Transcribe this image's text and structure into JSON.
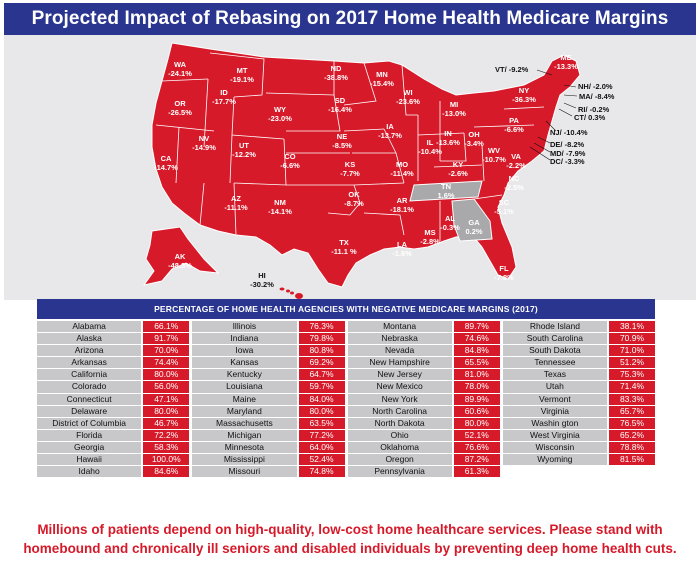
{
  "title": "Projected Impact of Rebasing on 2017 Home Health Medicare Margins",
  "colors": {
    "navy": "#2a3590",
    "red": "#d61a2a",
    "gray": "#a9a9ac",
    "cell": "#c8c8cb"
  },
  "map": {
    "states": [
      {
        "code": "WA",
        "value": "-24.1%"
      },
      {
        "code": "OR",
        "value": "-26.5%"
      },
      {
        "code": "CA",
        "value": "-14.7%"
      },
      {
        "code": "NV",
        "value": "-14.9%"
      },
      {
        "code": "ID",
        "value": "-17.7%"
      },
      {
        "code": "MT",
        "value": "-19.1%"
      },
      {
        "code": "WY",
        "value": "-23.0%"
      },
      {
        "code": "UT",
        "value": "-12.2%"
      },
      {
        "code": "AZ",
        "value": "-11.1%"
      },
      {
        "code": "CO",
        "value": "-6.6%"
      },
      {
        "code": "NM",
        "value": "-14.1%"
      },
      {
        "code": "ND",
        "value": "-38.8%"
      },
      {
        "code": "SD",
        "value": "-16.4%"
      },
      {
        "code": "NE",
        "value": "-8.5%"
      },
      {
        "code": "KS",
        "value": "-7.7%"
      },
      {
        "code": "OK",
        "value": "-8.7%"
      },
      {
        "code": "TX",
        "value": "-11.1 %"
      },
      {
        "code": "MN",
        "value": "-15.4%"
      },
      {
        "code": "IA",
        "value": "-13.7%"
      },
      {
        "code": "MO",
        "value": "-11.4%"
      },
      {
        "code": "AR",
        "value": "-18.1%"
      },
      {
        "code": "LA",
        "value": "-1.6%"
      },
      {
        "code": "WI",
        "value": "-23.6%"
      },
      {
        "code": "IL",
        "value": "-10.4%"
      },
      {
        "code": "MI",
        "value": "-13.0%"
      },
      {
        "code": "IN",
        "value": "-13.6%"
      },
      {
        "code": "OH",
        "value": "-3.4%"
      },
      {
        "code": "KY",
        "value": "-2.6%"
      },
      {
        "code": "TN",
        "value": "1.6%"
      },
      {
        "code": "MS",
        "value": "-2.8%"
      },
      {
        "code": "AL",
        "value": "-0.3%"
      },
      {
        "code": "GA",
        "value": "0.2%"
      },
      {
        "code": "FL",
        "value": "-7.8%"
      },
      {
        "code": "SC",
        "value": "-5.1%"
      },
      {
        "code": "NC",
        "value": "-2.5%"
      },
      {
        "code": "VA",
        "value": "-2.2%"
      },
      {
        "code": "WV",
        "value": "-10.7%"
      },
      {
        "code": "PA",
        "value": "-6.6%"
      },
      {
        "code": "NY",
        "value": "-36.3%"
      },
      {
        "code": "ME",
        "value": "-13.3%"
      },
      {
        "code": "AK",
        "value": "-48.3%"
      },
      {
        "code": "HI",
        "value": "-30.2%"
      }
    ],
    "callouts": [
      {
        "text": "VT/ -9.2%"
      },
      {
        "text": "NH/ -2.0%"
      },
      {
        "text": "MA/ -8.4%"
      },
      {
        "text": "RI/ -0.2%"
      },
      {
        "text": "CT/ 0.3%"
      },
      {
        "text": "NJ/ -10.4%"
      },
      {
        "text": "DE/ -8.2%"
      },
      {
        "text": "MD/ -7.9%"
      },
      {
        "text": "DC/ -3.3%"
      }
    ]
  },
  "table": {
    "header": "PERCENTAGE OF HOME HEALTH AGENCIES WITH NEGATIVE MEDICARE MARGINS (2017)",
    "columns": [
      [
        {
          "state": "Alabama",
          "pct": "66.1%"
        },
        {
          "state": "Alaska",
          "pct": "91.7%"
        },
        {
          "state": "Arizona",
          "pct": "70.0%"
        },
        {
          "state": "Arkansas",
          "pct": "74.4%"
        },
        {
          "state": "California",
          "pct": "80.0%"
        },
        {
          "state": "Colorado",
          "pct": "56.0%"
        },
        {
          "state": "Connecticut",
          "pct": "47.1%"
        },
        {
          "state": "Delaware",
          "pct": "80.0%"
        },
        {
          "state": "District of Columbia",
          "pct": "46.7%"
        },
        {
          "state": "Florida",
          "pct": "72.2%"
        },
        {
          "state": "Georgia",
          "pct": "58.3%"
        },
        {
          "state": "Hawaii",
          "pct": "100.0%"
        },
        {
          "state": "Idaho",
          "pct": "84.6%"
        }
      ],
      [
        {
          "state": "Illinois",
          "pct": "76.3%"
        },
        {
          "state": "Indiana",
          "pct": "79.8%"
        },
        {
          "state": "Iowa",
          "pct": "80.8%"
        },
        {
          "state": "Kansas",
          "pct": "69.2%"
        },
        {
          "state": "Kentucky",
          "pct": "64.7%"
        },
        {
          "state": "Louisiana",
          "pct": "59.7%"
        },
        {
          "state": "Maine",
          "pct": "84.0%"
        },
        {
          "state": "Maryland",
          "pct": "80.0%"
        },
        {
          "state": "Massachusetts",
          "pct": "63.5%"
        },
        {
          "state": "Michigan",
          "pct": "77.2%"
        },
        {
          "state": "Minnesota",
          "pct": "64.0%"
        },
        {
          "state": "Mississippi",
          "pct": "52.4%"
        },
        {
          "state": "Missouri",
          "pct": "74.8%"
        }
      ],
      [
        {
          "state": "Montana",
          "pct": "89.7%"
        },
        {
          "state": "Nebraska",
          "pct": "74.6%"
        },
        {
          "state": "Nevada",
          "pct": "84.8%"
        },
        {
          "state": "New Hampshire",
          "pct": "65.5%"
        },
        {
          "state": "New Jersey",
          "pct": "81.0%"
        },
        {
          "state": "New Mexico",
          "pct": "78.0%"
        },
        {
          "state": "New York",
          "pct": "89.9%"
        },
        {
          "state": "North Carolina",
          "pct": "60.6%"
        },
        {
          "state": "North Dakota",
          "pct": "80.0%"
        },
        {
          "state": "Ohio",
          "pct": "52.1%"
        },
        {
          "state": "Oklahoma",
          "pct": "76.6%"
        },
        {
          "state": "Oregon",
          "pct": "87.2%"
        },
        {
          "state": "Pennsylvania",
          "pct": "61.3%"
        }
      ],
      [
        {
          "state": "Rhode Island",
          "pct": "38.1%"
        },
        {
          "state": "South Carolina",
          "pct": "70.9%"
        },
        {
          "state": "South Dakota",
          "pct": "71.0%"
        },
        {
          "state": "Tennessee",
          "pct": "51.2%"
        },
        {
          "state": "Texas",
          "pct": "75.3%"
        },
        {
          "state": "Utah",
          "pct": "71.4%"
        },
        {
          "state": "Vermont",
          "pct": "83.3%"
        },
        {
          "state": "Virginia",
          "pct": "65.7%"
        },
        {
          "state": "Washin gton",
          "pct": "76.5%"
        },
        {
          "state": "West Virginia",
          "pct": "65.2%"
        },
        {
          "state": "Wisconsin",
          "pct": "78.8%"
        },
        {
          "state": "Wyoming",
          "pct": "81.5%"
        },
        {
          "state": "",
          "pct": ""
        }
      ]
    ]
  },
  "footer": {
    "line1": "Millions of patients depend on high-quality, low-cost home healthcare services.  Please stand with",
    "line2": "homebound and chronically ill seniors and disabled individuals by preventing deep home health cuts."
  }
}
